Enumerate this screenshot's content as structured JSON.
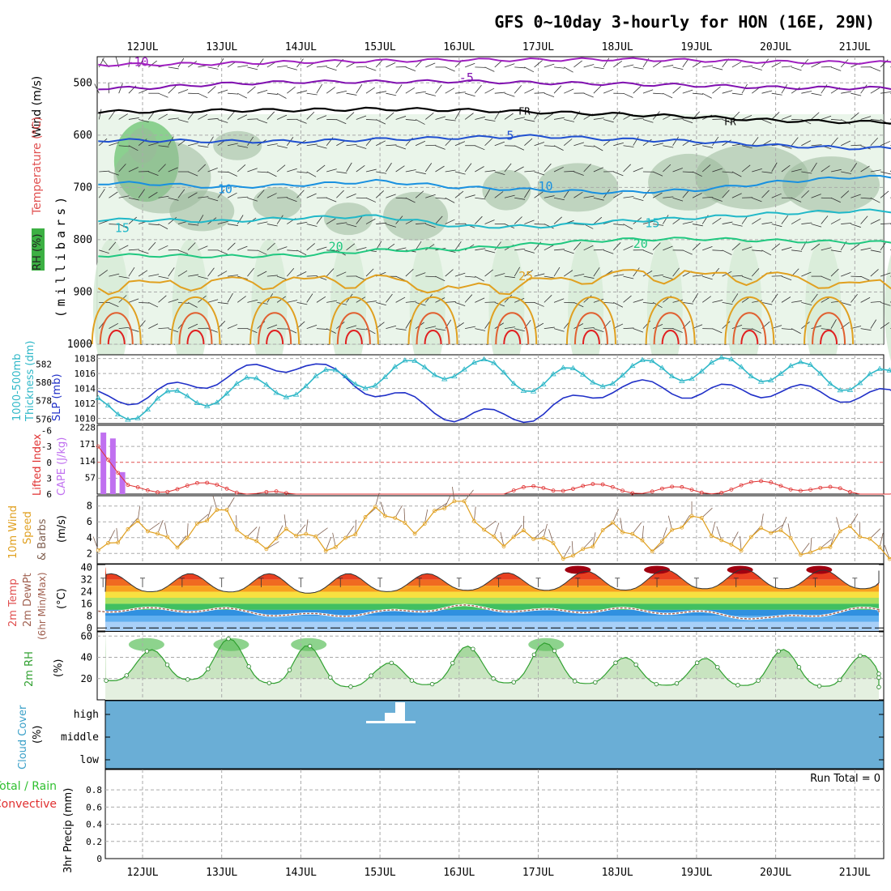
{
  "header": {
    "title": "GFS 0~10day 3-hourly for HON (16E, 29N)"
  },
  "x_axis": {
    "ticks": [
      "12JUL",
      "13JUL",
      "14JUL",
      "15JUL",
      "16JUL",
      "17JUL",
      "18JUL",
      "19JUL",
      "20JUL",
      "21JUL"
    ],
    "days_shown": 9.86
  },
  "panels": {
    "upper": {
      "ylabel_parts": [
        "Wind (m/s)",
        "Temperature (°C)",
        "RH (%)"
      ],
      "ylabel_axis": "(millibars)",
      "yticks": [
        "500",
        "600",
        "700",
        "800",
        "900",
        "1000"
      ],
      "ylim": [
        450,
        1000
      ],
      "temp_labels": [
        "-10",
        "-5",
        "FR",
        "FR",
        "5",
        "10",
        "10",
        "15",
        "15",
        "20",
        "20",
        "25"
      ],
      "rh_labels": [
        "30",
        "10",
        "30",
        "30",
        "10",
        "30",
        "30",
        "50",
        "50",
        "30"
      ],
      "colors": {
        "minus10": "#a020c0",
        "minus5": "#8010b0",
        "freezing": "#000000",
        "plus5": "#2050d0",
        "plus10": "#1890e0",
        "plus15": "#20b8c8",
        "plus20": "#20c880",
        "plus25": "#e0a020",
        "plus30": "#e06030",
        "plus35": "#e02020",
        "rh_light": "#d8ecd8",
        "rh_mid": "#9ab89a",
        "rh_dark": "#3cb043"
      }
    },
    "slp": {
      "ylabel_left": "Thickness (dm)",
      "ylabel_left2": "1000-500mb",
      "ylabel_right": "SLP (mb)",
      "thickness_ticks": [
        "582",
        "580",
        "578",
        "576"
      ],
      "slp_ticks": [
        "1018",
        "1016",
        "1014",
        "1012",
        "1010"
      ],
      "colors": {
        "slp": "#2030c8",
        "thickness": "#30b8c8"
      }
    },
    "cape": {
      "ylabel_left": "Lifted Index",
      "ylabel_right": "CAPE (J/kg)",
      "li_ticks": [
        "-6",
        "-3",
        "0",
        "3",
        "6"
      ],
      "cape_ticks": [
        "228",
        "171",
        "114",
        "57"
      ],
      "colors": {
        "li": "#e03030",
        "cape": "#c070f0"
      }
    },
    "wind10m": {
      "ylabel": [
        "10m Wind",
        "Speed",
        "& Barbs",
        "(m/s)"
      ],
      "yticks": [
        "8",
        "6",
        "4",
        "2"
      ],
      "colors": {
        "speed": "#e0a020",
        "barbs": "#806050"
      }
    },
    "temp2m": {
      "ylabel": [
        "2m Temp",
        "2m DewPt",
        "(6hr Min/Max)",
        "(°C)"
      ],
      "yticks": [
        "40",
        "32",
        "24",
        "16",
        "8",
        "0"
      ],
      "colors": {
        "dewpt": "#a06050"
      }
    },
    "rh2m": {
      "ylabel": [
        "2m RH",
        "(%)"
      ],
      "yticks": [
        "60",
        "40",
        "20"
      ],
      "colors": {
        "rh": "#30a030",
        "fill_dark": "#5cc05c"
      }
    },
    "cloud": {
      "ylabel": [
        "Cloud Cover",
        "(%)"
      ],
      "levels": [
        "high",
        "middle",
        "low"
      ],
      "colors": {
        "fill": "#6aaed6"
      }
    },
    "precip": {
      "ylabel_left1": "Total / Rain",
      "ylabel_left2": "Convective",
      "ylabel_axis": "3hr Precip (mm)",
      "yticks": [
        "0.8",
        "0.6",
        "0.4",
        "0.2",
        "0"
      ],
      "run_total": "Run Total = 0",
      "colors": {
        "total": "#30c030",
        "convective": "#e03030"
      }
    }
  },
  "chart_data": [
    {
      "type": "line",
      "title": "GFS 0~10day 3-hourly for HON (16E, 29N)",
      "ylabel": "millibars",
      "ylim": [
        450,
        1000
      ],
      "x": [
        "12JUL",
        "13JUL",
        "14JUL",
        "15JUL",
        "16JUL",
        "17JUL",
        "18JUL",
        "19JUL",
        "20JUL",
        "21JUL"
      ],
      "series": [
        {
          "name": "-10",
          "values": [
            465,
            463,
            460,
            458,
            456,
            456,
            455,
            457,
            460,
            461
          ]
        },
        {
          "name": "-5",
          "values": [
            510,
            502,
            498,
            498,
            497,
            500,
            502,
            505,
            509,
            510
          ]
        },
        {
          "name": "FR",
          "values": [
            555,
            553,
            552,
            550,
            552,
            556,
            560,
            565,
            572,
            575
          ]
        },
        {
          "name": "5",
          "values": [
            610,
            612,
            612,
            608,
            605,
            602,
            608,
            612,
            620,
            625
          ]
        },
        {
          "name": "10",
          "values": [
            692,
            700,
            695,
            688,
            700,
            705,
            710,
            705,
            690,
            680
          ]
        },
        {
          "name": "15",
          "values": [
            762,
            765,
            758,
            755,
            775,
            775,
            765,
            758,
            750,
            745
          ]
        },
        {
          "name": "20",
          "values": [
            830,
            832,
            830,
            820,
            818,
            808,
            800,
            798,
            802,
            805
          ]
        },
        {
          "name": "25",
          "values": [
            880,
            875,
            872,
            870,
            890,
            875,
            860,
            862,
            865,
            880
          ]
        }
      ]
    },
    {
      "type": "line",
      "x": [
        "12JUL",
        "13JUL",
        "14JUL",
        "15JUL",
        "16JUL",
        "17JUL",
        "18JUL",
        "19JUL",
        "20JUL",
        "21JUL"
      ],
      "series": [
        {
          "name": "SLP (mb)",
          "values": [
            1012.8,
            1015.5,
            1017.5,
            1013.5,
            1010.2,
            1010.5,
            1014.5,
            1013.5,
            1013.8,
            1013.0
          ]
        },
        {
          "name": "Thickness (dm)",
          "values": [
            577.2,
            579.0,
            579.8,
            580.8,
            581.8,
            580.0,
            581.0,
            581.5,
            581.3,
            580.2
          ]
        }
      ]
    },
    {
      "type": "bar",
      "x": [
        "11.5JUL",
        "11.6JUL",
        "11.75JUL"
      ],
      "series": [
        {
          "name": "CAPE (J/kg)",
          "values": [
            210,
            190,
            75
          ]
        }
      ],
      "ylabel": "CAPE (J/kg)"
    },
    {
      "type": "line",
      "x": [
        "12JUL",
        "13JUL",
        "14JUL",
        "15JUL",
        "16JUL",
        "17JUL",
        "18JUL",
        "19JUL",
        "20JUL",
        "21JUL"
      ],
      "series": [
        {
          "name": "Lifted Index",
          "values": [
            5.0,
            4.5,
            7.0,
            9.0,
            9.5,
            4.5,
            5.0,
            5.5,
            4.0,
            6.0
          ]
        }
      ]
    },
    {
      "type": "line",
      "ylabel": "m/s",
      "x": [
        "12JUL",
        "13JUL",
        "14JUL",
        "15JUL",
        "16JUL",
        "17JUL",
        "18JUL",
        "19JUL",
        "20JUL",
        "21JUL"
      ],
      "series": [
        {
          "name": "10m Wind Speed",
          "values": [
            4.0,
            6.0,
            3.0,
            6.0,
            7.5,
            2.5,
            4.0,
            5.0,
            3.5,
            3.5
          ]
        }
      ]
    },
    {
      "type": "area",
      "ylabel": "°C",
      "x": [
        "12JUL",
        "13JUL",
        "14JUL",
        "15JUL",
        "16JUL",
        "17JUL",
        "18JUL",
        "19JUL",
        "20JUL",
        "21JUL"
      ],
      "series": [
        {
          "name": "2m Temp max",
          "values": [
            36,
            36,
            36,
            36,
            36,
            37,
            38,
            39,
            39,
            38
          ]
        },
        {
          "name": "2m Temp min",
          "values": [
            24,
            24,
            23,
            24,
            25,
            25,
            25,
            26,
            26,
            26
          ]
        },
        {
          "name": "2m DewPt",
          "values": [
            12,
            12,
            8,
            10,
            14,
            11,
            12,
            10,
            6,
            12
          ]
        }
      ]
    },
    {
      "type": "area",
      "ylabel": "%",
      "x": [
        "12JUL",
        "13JUL",
        "14JUL",
        "15JUL",
        "16JUL",
        "17JUL",
        "18JUL",
        "19JUL",
        "20JUL",
        "21JUL"
      ],
      "series": [
        {
          "name": "2m RH max",
          "values": [
            46,
            58,
            53,
            33,
            50,
            55,
            40,
            38,
            48,
            42
          ]
        },
        {
          "name": "2m RH min",
          "values": [
            18,
            20,
            13,
            12,
            16,
            16,
            15,
            13,
            14,
            12
          ]
        }
      ]
    },
    {
      "type": "bar",
      "ylabel": "3hr Precip (mm)",
      "ylim": [
        0,
        1
      ],
      "x": [
        "12JUL",
        "13JUL",
        "14JUL",
        "15JUL",
        "16JUL",
        "17JUL",
        "18JUL",
        "19JUL",
        "20JUL",
        "21JUL"
      ],
      "series": [
        {
          "name": "Total",
          "values": [
            0,
            0,
            0,
            0,
            0,
            0,
            0,
            0,
            0,
            0
          ]
        },
        {
          "name": "Convective",
          "values": [
            0,
            0,
            0,
            0,
            0,
            0,
            0,
            0,
            0,
            0
          ]
        }
      ]
    }
  ]
}
